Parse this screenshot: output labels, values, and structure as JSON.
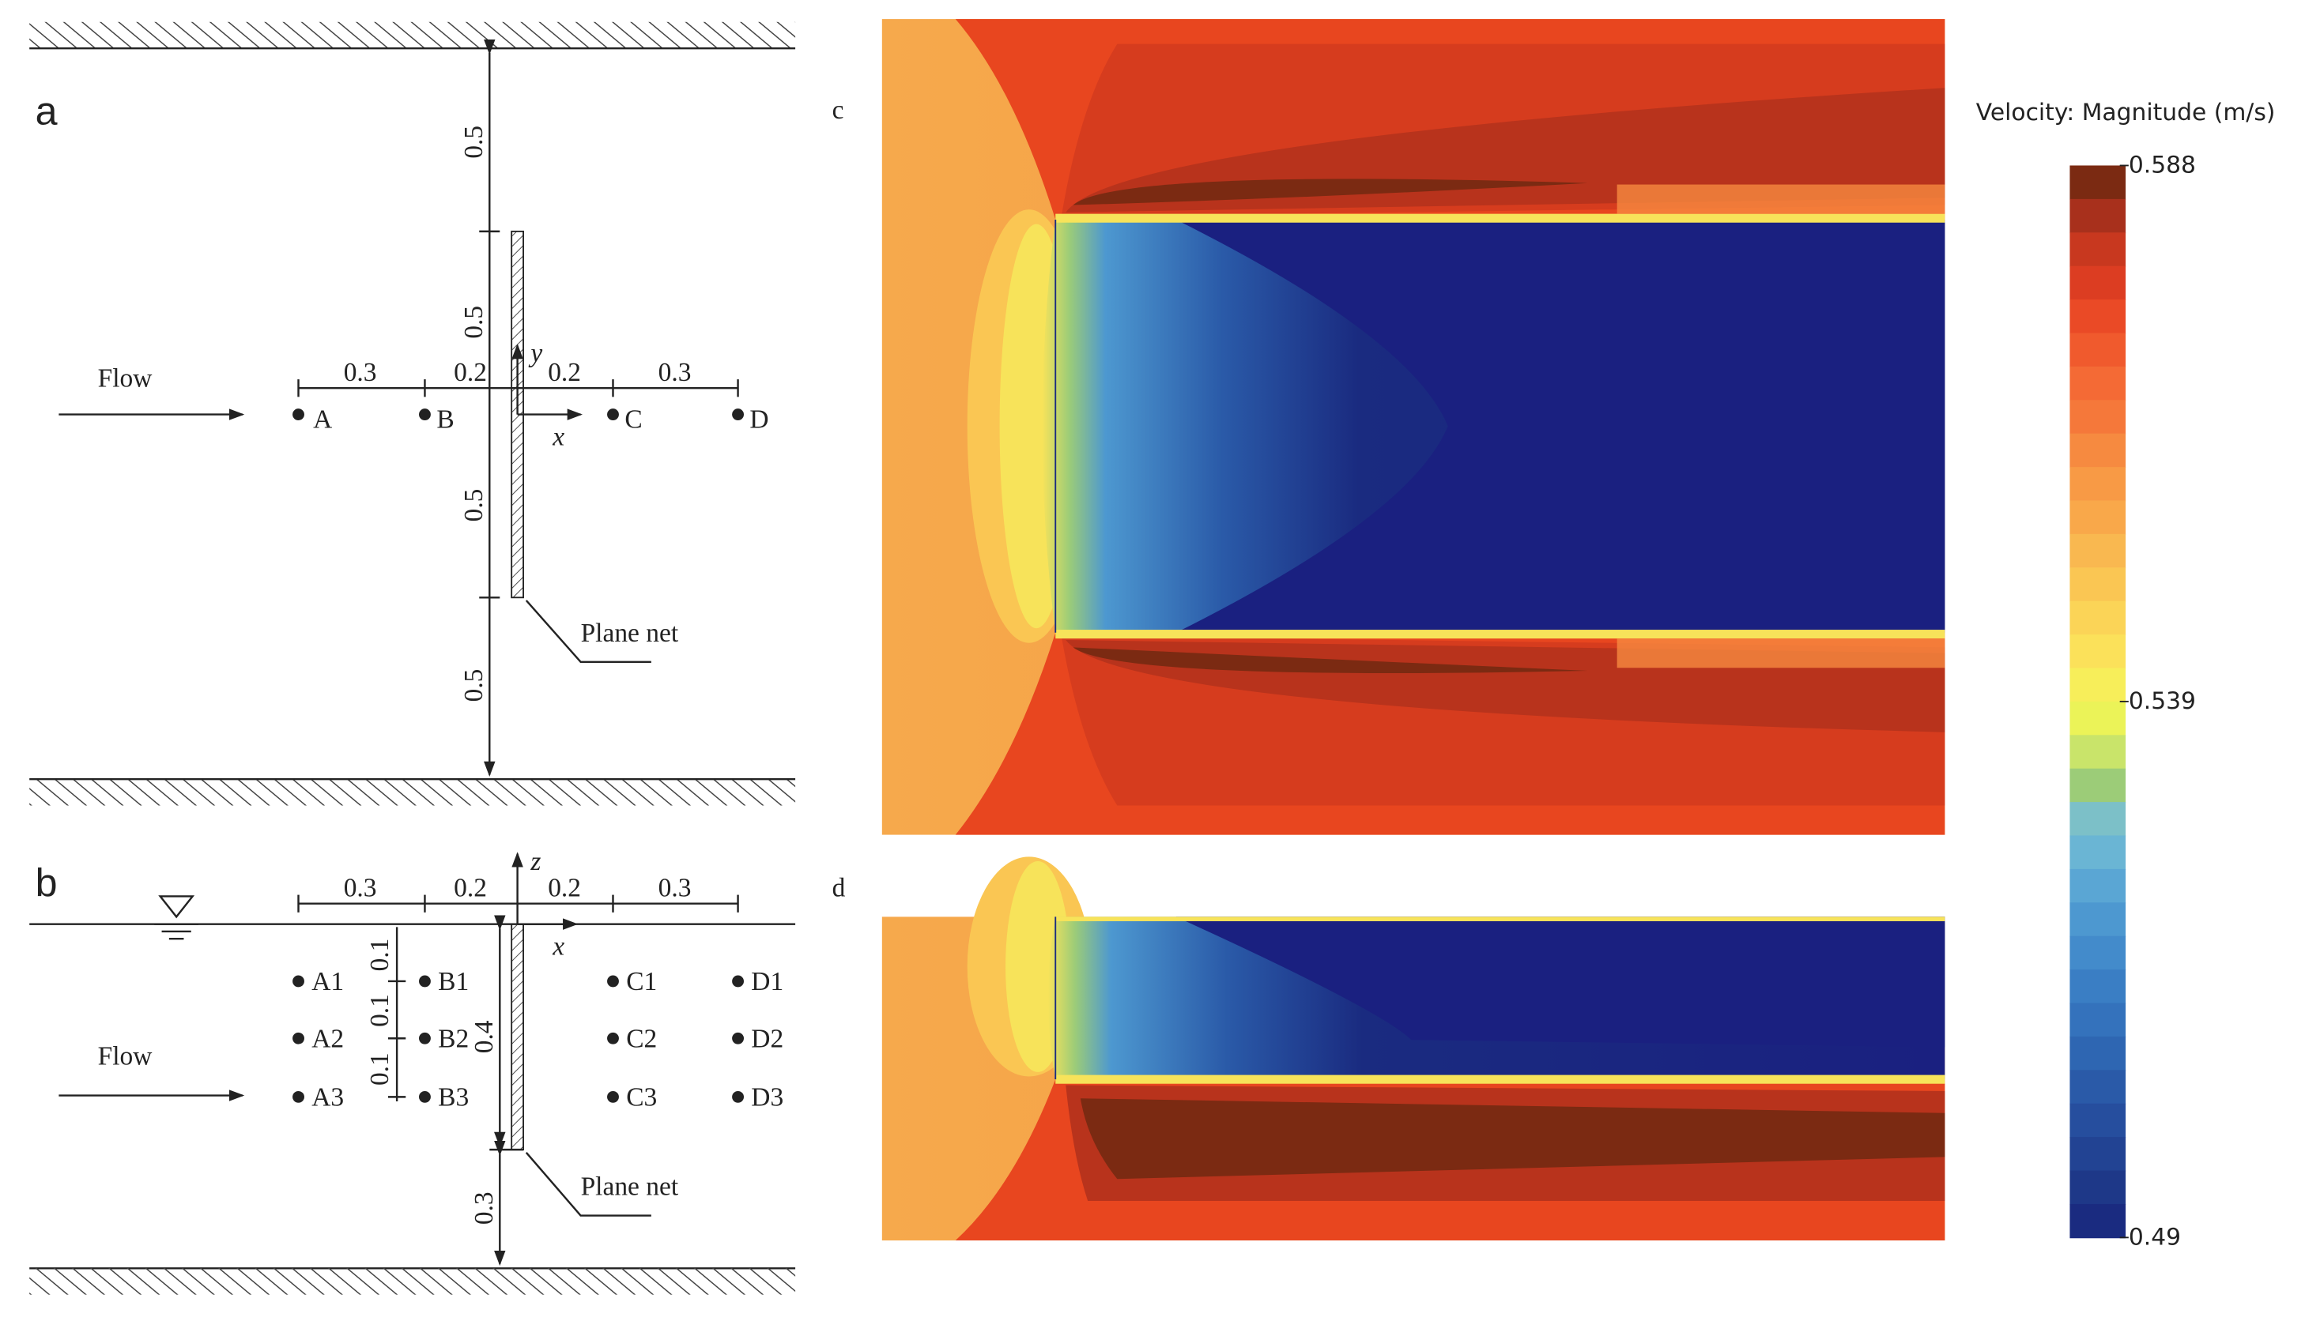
{
  "panel_a": {
    "label": "a",
    "flow": "Flow",
    "vertical_dims": [
      "0.5",
      "0.5",
      "0.5",
      "0.5"
    ],
    "horizontal_dims": [
      "0.3",
      "0.2",
      "0.2",
      "0.3"
    ],
    "points": [
      "A",
      "B",
      "C",
      "D"
    ],
    "axes": [
      "x",
      "y"
    ],
    "net": "Plane net"
  },
  "panel_b": {
    "label": "b",
    "flow": "Flow",
    "horizontal_dims": [
      "0.3",
      "0.2",
      "0.2",
      "0.3"
    ],
    "depth_dims": [
      "0.1",
      "0.1",
      "0.1"
    ],
    "net_height": "0.4",
    "net_bottom": "0.3",
    "points": [
      "A1",
      "A2",
      "A3",
      "B1",
      "B2",
      "B3",
      "C1",
      "C2",
      "C3",
      "D1",
      "D2",
      "D3"
    ],
    "axes": [
      "z",
      "x"
    ],
    "net": "Plane net"
  },
  "panel_c": {
    "label": "c"
  },
  "panel_d": {
    "label": "d"
  },
  "colorbar": {
    "title": "Velocity: Magnitude (m/s)",
    "range": [
      0.49,
      0.588
    ],
    "ticks": [
      0.588,
      0.539,
      0.49
    ],
    "colors": [
      "#7b2a12",
      "#a8301c",
      "#c8381f",
      "#dc3d22",
      "#ea4a26",
      "#f05a2d",
      "#f46a35",
      "#f5783a",
      "#f68a40",
      "#f89a45",
      "#f9a84a",
      "#f9b850",
      "#fac653",
      "#fbd457",
      "#fbe15a",
      "#f7ee5a",
      "#ebf358",
      "#c9e46a",
      "#9ccc78",
      "#7cc0c8",
      "#6ab5d4",
      "#5aa6d4",
      "#4d98d0",
      "#438bcb",
      "#3a7ec4",
      "#3472bc",
      "#2e66b2",
      "#2a5aa8",
      "#264e9e",
      "#224393",
      "#1e3888",
      "#1a2b80"
    ]
  }
}
